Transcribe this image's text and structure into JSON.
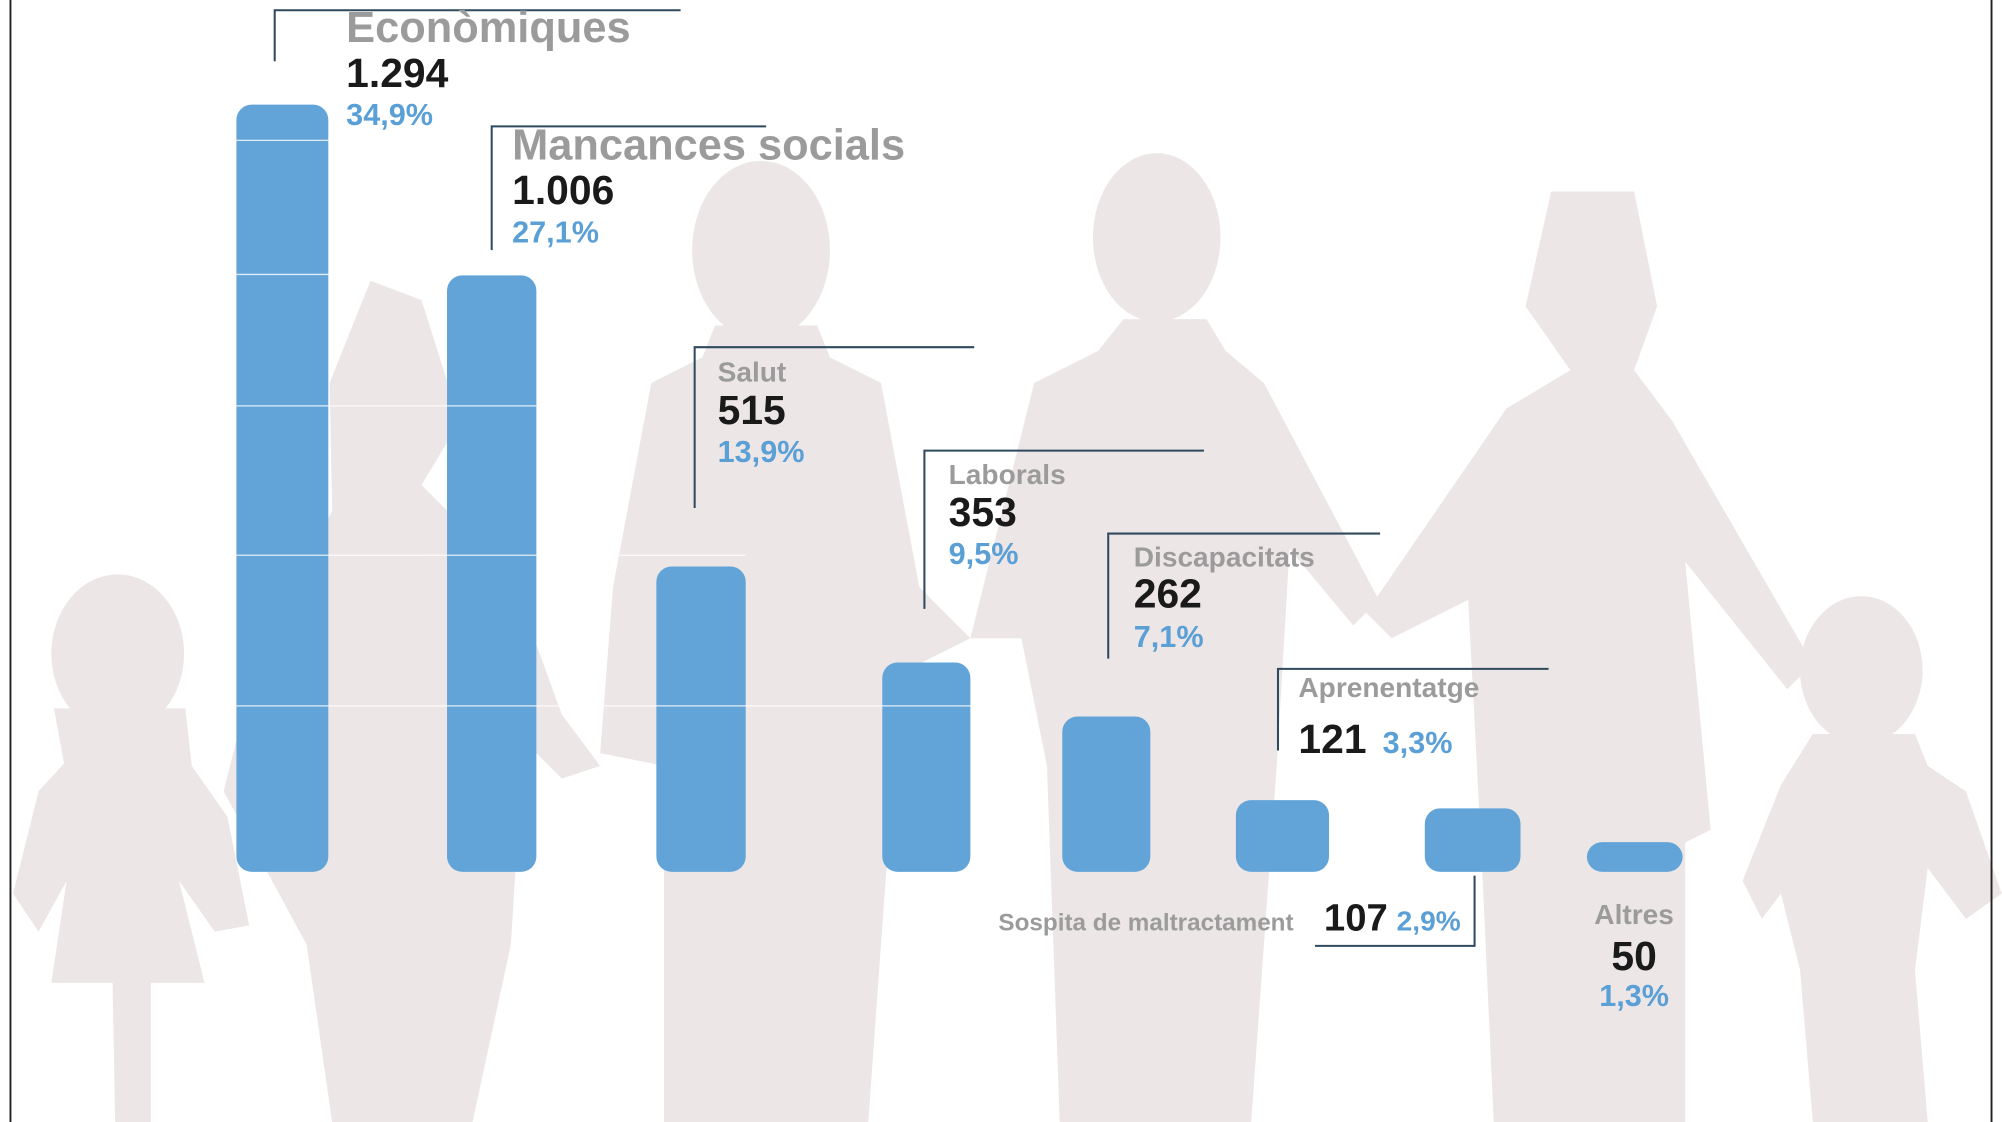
{
  "chart_data": {
    "type": "bar",
    "categories": [
      "Econòmiques",
      "Mancances socials",
      "Salut",
      "Laborals",
      "Discapacitats",
      "Aprenentatge",
      "Sospita de maltractament",
      "Altres"
    ],
    "values": [
      1294,
      1006,
      515,
      353,
      262,
      121,
      107,
      50
    ],
    "value_labels": [
      "1.294",
      "1.006",
      "515",
      "353",
      "262",
      "121",
      "107",
      "50"
    ],
    "shares": [
      34.9,
      27.1,
      13.9,
      9.5,
      7.1,
      3.3,
      2.9,
      1.3
    ],
    "share_labels": [
      "34,9%",
      "27,1%",
      "13,9%",
      "9,5%",
      "7,1%",
      "3,3%",
      "2,9%",
      "1,3%"
    ],
    "color": "#62a4d8"
  }
}
